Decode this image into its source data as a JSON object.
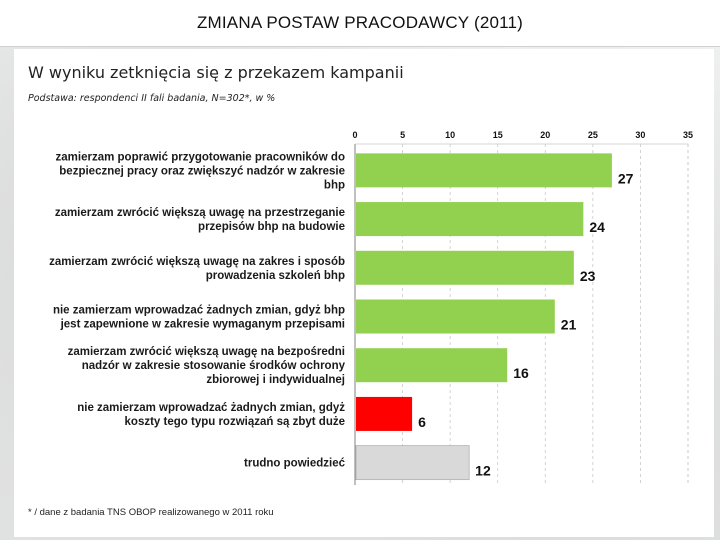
{
  "slide_title": "ZMIANA POSTAW PRACODAWCY (2011)",
  "subtitle": "W wyniku zetknięcia się z przekazem kampanii",
  "basis": "Podstawa:   respondenci II fali badania, N=302*, w %",
  "footnote": "* /   dane z badania TNS OBOP realizowanego w 2011 roku",
  "colors": {
    "green": "#92d050",
    "red": "#ff0000",
    "gray": "#d9d9d9"
  },
  "chart_data": {
    "type": "bar",
    "orientation": "horizontal",
    "xlim": [
      0,
      35
    ],
    "xticks": [
      "0",
      "5",
      "10",
      "15",
      "20",
      "25",
      "30",
      "35"
    ],
    "categories": [
      [
        "zamierzam poprawić przygotowanie pracowników do",
        "bezpiecznej pracy oraz zwiększyć nadzór w zakresie",
        "bhp"
      ],
      [
        "zamierzam zwrócić większą uwagę na przestrzeganie",
        "przepisów bhp na budowie"
      ],
      [
        "zamierzam zwrócić większą uwagę na zakres i sposób",
        "prowadzenia szkoleń bhp"
      ],
      [
        "nie zamierzam wprowadzać żadnych zmian, gdyż bhp",
        "jest zapewnione w zakresie wymaganym przepisami"
      ],
      [
        "zamierzam zwrócić większą uwagę na bezpośredni",
        "nadzór w zakresie stosowanie środków ochrony",
        "zbiorowej i indywidualnej"
      ],
      [
        "nie zamierzam wprowadzać żadnych zmian, gdyż",
        "koszty tego typu rozwiązań są zbyt duże"
      ],
      [
        "trudno powiedzieć"
      ]
    ],
    "values": [
      27,
      24,
      23,
      21,
      16,
      6,
      12
    ],
    "value_labels": [
      "27",
      "24",
      "23",
      "21",
      "16",
      "6",
      "12"
    ],
    "bar_colors": [
      "green",
      "green",
      "green",
      "green",
      "green",
      "red",
      "gray"
    ]
  }
}
